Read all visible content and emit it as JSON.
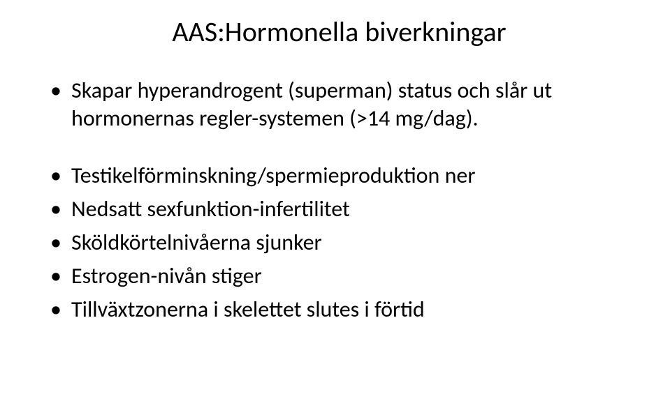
{
  "slide": {
    "title": "AAS:Hormonella biverkningar",
    "bullets_top": [
      "Skapar hyperandrogent (superman) status och slår ut hormonernas regler-systemen (>14 mg/dag)."
    ],
    "bullets_bottom": [
      "Testikelförminskning/spermieproduktion ner",
      "Nedsatt sexfunktion-infertilitet",
      "Sköldkörtelnivåerna sjunker",
      "Estrogen-nivån stiger",
      "Tillväxtzonerna i skelettet slutes i förtid"
    ]
  },
  "style": {
    "background_color": "#ffffff",
    "text_color": "#000000",
    "title_fontsize": 40,
    "bullet_fontsize": 32,
    "font_family": "Calibri"
  }
}
